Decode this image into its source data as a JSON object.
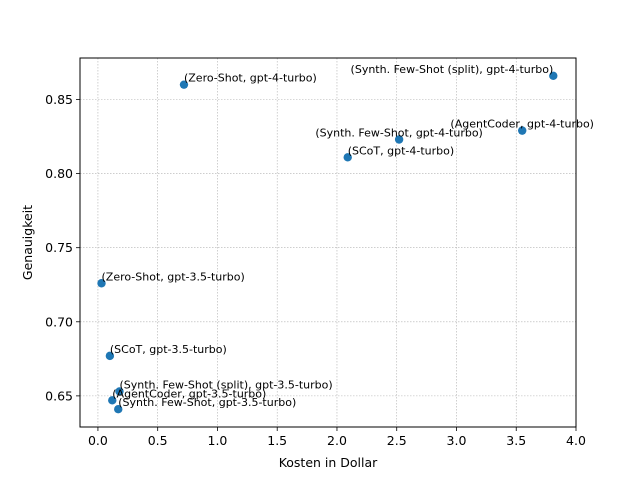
{
  "chart_data": {
    "type": "scatter",
    "title": "",
    "xlabel": "Kosten in Dollar",
    "ylabel": "Genauigkeit",
    "xlim": [
      -0.15,
      4.0
    ],
    "ylim": [
      0.629,
      0.878
    ],
    "xticks": [
      0.0,
      0.5,
      1.0,
      1.5,
      2.0,
      2.5,
      3.0,
      3.5,
      4.0
    ],
    "yticks": [
      0.65,
      0.7,
      0.75,
      0.8,
      0.85
    ],
    "xtick_labels": [
      "0.0",
      "0.5",
      "1.0",
      "1.5",
      "2.0",
      "2.5",
      "3.0",
      "3.5",
      "4.0"
    ],
    "ytick_labels": [
      "0.65",
      "0.70",
      "0.75",
      "0.80",
      "0.85"
    ],
    "grid": true,
    "marker_color": "#1f77b4",
    "points": [
      {
        "label": "(Zero-Shot, gpt-4-turbo)",
        "x": 0.72,
        "y": 0.86,
        "anchor": "start"
      },
      {
        "label": "(Synth. Few-Shot (split), gpt-4-turbo)",
        "x": 3.81,
        "y": 0.866,
        "anchor": "end"
      },
      {
        "label": "(Synth. Few-Shot, gpt-4-turbo)",
        "x": 2.52,
        "y": 0.823,
        "anchor": "middle"
      },
      {
        "label": "(AgentCoder, gpt-4-turbo)",
        "x": 3.55,
        "y": 0.829,
        "anchor": "middle"
      },
      {
        "label": "(SCoT, gpt-4-turbo)",
        "x": 2.09,
        "y": 0.811,
        "anchor": "start"
      },
      {
        "label": "(Zero-Shot, gpt-3.5-turbo)",
        "x": 0.03,
        "y": 0.726,
        "anchor": "start"
      },
      {
        "label": "(SCoT, gpt-3.5-turbo)",
        "x": 0.1,
        "y": 0.677,
        "anchor": "start"
      },
      {
        "label": "(Synth. Few-Shot (split), gpt-3.5-turbo)",
        "x": 0.18,
        "y": 0.653,
        "anchor": "start"
      },
      {
        "label": "(AgentCoder, gpt-3.5-turbo)",
        "x": 0.12,
        "y": 0.647,
        "anchor": "start"
      },
      {
        "label": "(Synth. Few-Shot, gpt-3.5-turbo)",
        "x": 0.17,
        "y": 0.641,
        "anchor": "start"
      }
    ]
  }
}
